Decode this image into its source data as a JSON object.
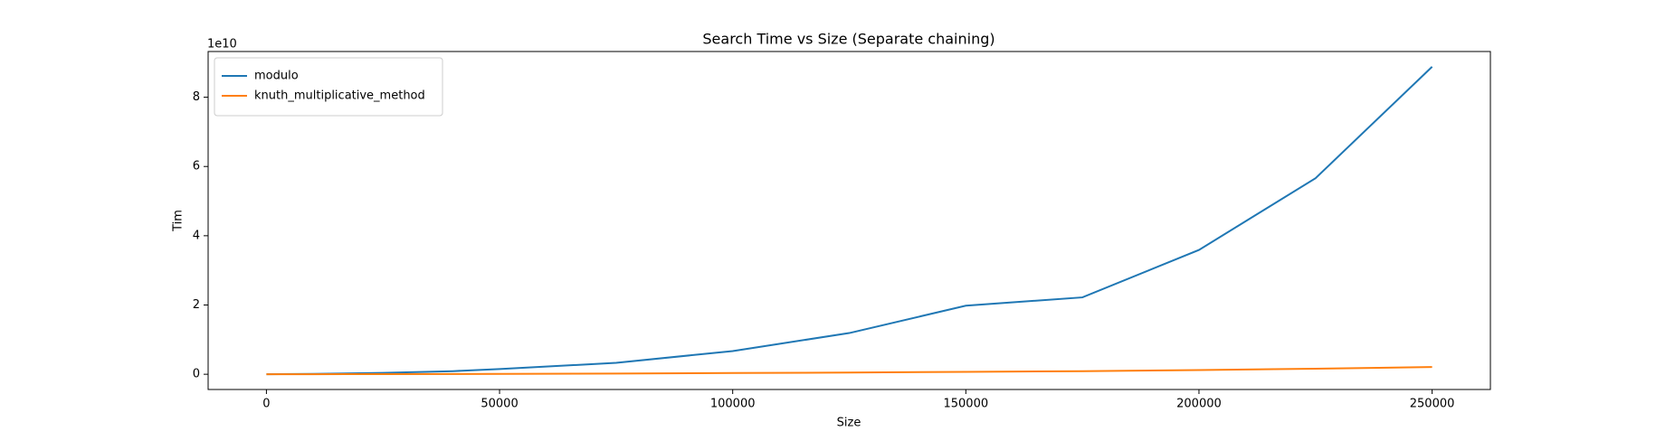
{
  "chart_data": {
    "type": "line",
    "title": "Search Time vs Size (Separate chaining)",
    "x_label": "Size",
    "y_label": "Tim",
    "y_offset_label": "1e10",
    "x": [
      0,
      10000,
      25000,
      40000,
      50000,
      75000,
      100000,
      125000,
      150000,
      175000,
      200000,
      225000,
      250000
    ],
    "series": [
      {
        "name": "modulo",
        "color": "#1f77b4",
        "values": [
          0,
          100000000,
          400000000,
          900000000,
          1500000000,
          3300000000,
          6700000000,
          11900000000,
          19800000000,
          22200000000,
          35900000000,
          56600000000,
          88800000000
        ]
      },
      {
        "name": "knuth_multiplicative_method",
        "color": "#ff7f0e",
        "values": [
          0,
          20000000,
          50000000,
          80000000,
          100000000,
          200000000,
          350000000,
          500000000,
          700000000,
          900000000,
          1200000000,
          1600000000,
          2100000000
        ]
      }
    ],
    "xlim": [
      -12500,
      262500
    ],
    "ylim": [
      -4400000000,
      93200000000
    ],
    "xticks": [
      0,
      50000,
      100000,
      150000,
      200000,
      250000
    ],
    "yticks": [
      {
        "value": 0,
        "label": "0"
      },
      {
        "value": 20000000000,
        "label": "2"
      },
      {
        "value": 40000000000,
        "label": "4"
      },
      {
        "value": 60000000000,
        "label": "6"
      },
      {
        "value": 80000000000,
        "label": "8"
      }
    ],
    "legend": "upper left"
  }
}
